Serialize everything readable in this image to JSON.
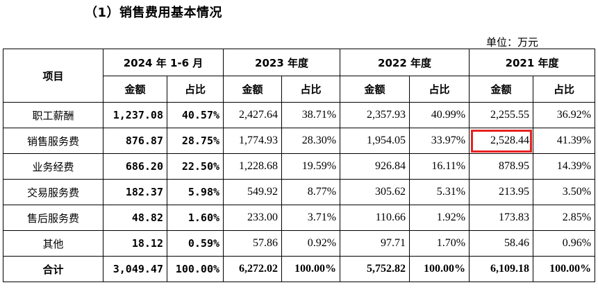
{
  "heading": "（1）销售费用基本情况",
  "unit_label": "单位：万元",
  "table": {
    "item_header": "项目",
    "periods": [
      "2024 年 1-6 月",
      "2023 年度",
      "2022 年度",
      "2021 年度"
    ],
    "sub_headers": [
      "金额",
      "占比"
    ],
    "rows": [
      {
        "name": "职工薪酬",
        "values": [
          "1,237.08",
          "40.57%",
          "2,427.64",
          "38.71%",
          "2,357.93",
          "40.99%",
          "2,255.55",
          "36.92%"
        ]
      },
      {
        "name": "销售服务费",
        "values": [
          "876.87",
          "28.75%",
          "1,774.93",
          "28.30%",
          "1,954.05",
          "33.97%",
          "2,528.44",
          "41.39%"
        ]
      },
      {
        "name": "业务经费",
        "values": [
          "686.20",
          "22.50%",
          "1,228.68",
          "19.59%",
          "926.84",
          "16.11%",
          "878.95",
          "14.39%"
        ]
      },
      {
        "name": "交易服务费",
        "values": [
          "182.37",
          "5.98%",
          "549.92",
          "8.77%",
          "305.62",
          "5.31%",
          "213.95",
          "3.50%"
        ]
      },
      {
        "name": "售后服务费",
        "values": [
          "48.82",
          "1.60%",
          "233.00",
          "3.71%",
          "110.66",
          "1.92%",
          "173.83",
          "2.85%"
        ]
      },
      {
        "name": "其他",
        "values": [
          "18.12",
          "0.59%",
          "57.86",
          "0.92%",
          "97.71",
          "1.70%",
          "58.46",
          "0.96%"
        ]
      }
    ],
    "total": {
      "name": "合计",
      "values": [
        "3,049.47",
        "100.00%",
        "6,272.02",
        "100.00%",
        "5,752.82",
        "100.00%",
        "6,109.18",
        "100.00%"
      ]
    }
  },
  "highlight_color": "#e8201f"
}
